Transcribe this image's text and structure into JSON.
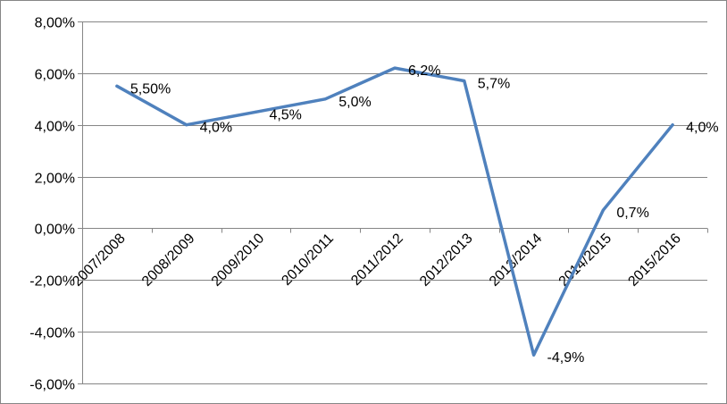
{
  "chart_data": {
    "type": "line",
    "categories": [
      "2007/2008",
      "2008/2009",
      "2009/2010",
      "2010/2011",
      "2011/2012",
      "2012/2013",
      "2013/2014",
      "2014/2015",
      "2015/2016"
    ],
    "series": [
      {
        "values": [
          5.5,
          4.0,
          4.5,
          5.0,
          6.2,
          5.7,
          -4.9,
          0.7,
          4.0
        ],
        "data_labels": [
          "5,50%",
          "4,0%",
          "4,5%",
          "5,0%",
          "6,2%",
          "5,7%",
          "-4,9%",
          "0,7%",
          "4,0%"
        ],
        "color": "#4F81BD"
      }
    ],
    "y_tick_labels": [
      "8,00%",
      "6,00%",
      "4,00%",
      "2,00%",
      "0,00%",
      "-2,00%",
      "-4,00%",
      "-6,00%"
    ],
    "y_ticks": [
      8,
      6,
      4,
      2,
      0,
      -2,
      -4,
      -6
    ],
    "ylim": [
      -6,
      8
    ],
    "grid": true,
    "legend": "none",
    "colors": {
      "line": "#4F81BD",
      "grid": "#868686",
      "text": "#000000"
    }
  }
}
